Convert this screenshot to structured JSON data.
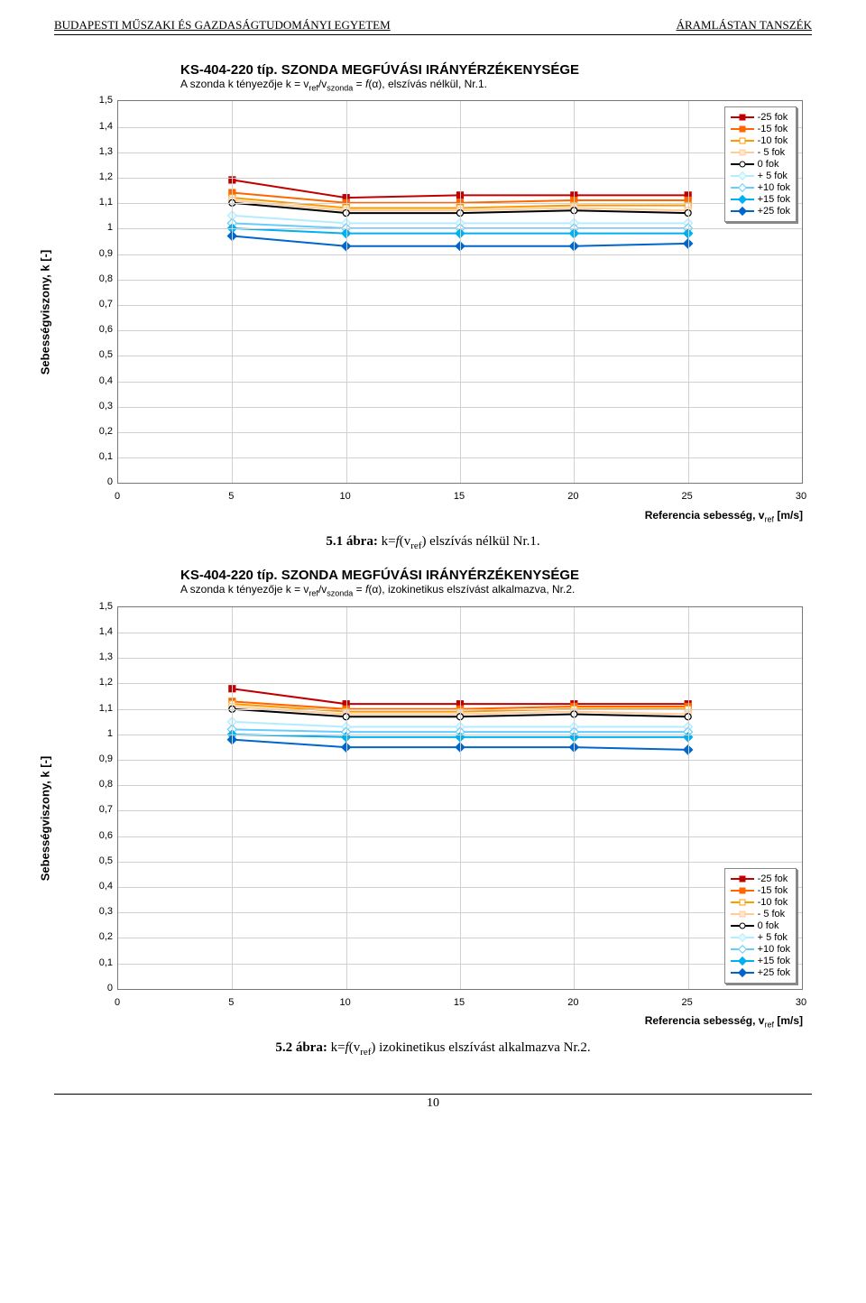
{
  "header": {
    "left": "BUDAPESTI MŰSZAKI ÉS GAZDASÁGTUDOMÁNYI EGYETEM",
    "right": "ÁRAMLÁSTAN TANSZÉK"
  },
  "page_number": "10",
  "common": {
    "x": [
      5,
      10,
      15,
      20,
      25
    ],
    "xlim": [
      0,
      30
    ],
    "xtick_step": 5,
    "ylim": [
      0,
      1.5
    ],
    "ytick_step": 0.1,
    "ytick_labels": [
      "0",
      "0,1",
      "0,2",
      "0,3",
      "0,4",
      "0,5",
      "0,6",
      "0,7",
      "0,8",
      "0,9",
      "1",
      "1,1",
      "1,2",
      "1,3",
      "1,4",
      "1,5"
    ],
    "xtick_labels": [
      "0",
      "5",
      "10",
      "15",
      "20",
      "25",
      "30"
    ],
    "ylabel": "Sebességviszony, k [-]",
    "xlabel_html": "Referencia sebesség, v<sub>ref</sub> [m/s]",
    "grid_color": "#d0d0d0",
    "background_color": "#ffffff",
    "axis_color": "#777777",
    "legend_fontsize": 11,
    "label_fontsize": 13,
    "tick_fontsize": 11,
    "line_width": 2,
    "marker_size": 7,
    "series_style": [
      {
        "key": "m25",
        "label": "-25 fok",
        "color": "#c00000",
        "marker": "sq",
        "mfill": "#c00000"
      },
      {
        "key": "m15",
        "label": "-15 fok",
        "color": "#ff6600",
        "marker": "sq",
        "mfill": "#ff6600"
      },
      {
        "key": "m10",
        "label": "-10 fok",
        "color": "#ff9900",
        "marker": "sq",
        "mfill": "#fff",
        "mborder": "#ff9900"
      },
      {
        "key": "m5",
        "label": "- 5 fok",
        "color": "#ffcc99",
        "marker": "sq",
        "mfill": "#ffe6cc",
        "mborder": "#ffcc99"
      },
      {
        "key": "z0",
        "label": "  0 fok",
        "color": "#000000",
        "marker": "ci",
        "mfill": "#ffffff",
        "mborder": "#000000"
      },
      {
        "key": "p5",
        "label": "+ 5 fok",
        "color": "#b3ecff",
        "marker": "di",
        "mfill": "#e6f9ff",
        "mborder": "#b3ecff"
      },
      {
        "key": "p10",
        "label": "+10 fok",
        "color": "#66ccff",
        "marker": "di",
        "mfill": "#fff",
        "mborder": "#66ccff"
      },
      {
        "key": "p15",
        "label": "+15 fok",
        "color": "#00b0f0",
        "marker": "di",
        "mfill": "#00b0f0"
      },
      {
        "key": "p25",
        "label": "+25 fok",
        "color": "#0066cc",
        "marker": "di",
        "mfill": "#0066cc"
      }
    ]
  },
  "chart1": {
    "title": "KS-404-220 típ. SZONDA MEGFÚVÁSI IRÁNYÉRZÉKENYSÉGE",
    "sub_html": "A szonda k tényezője k = v<sub>ref</sub>/v<sub>szonda</sub> = <i>f</i>(α), elszívás nélkül, Nr.1.",
    "legend_pos": "top-right",
    "caption_html": "<b>5.1 ábra:</b> k=<i>f</i>(v<sub>ref</sub>) elszívás nélkül Nr.1.",
    "data": {
      "m25": [
        1.19,
        1.12,
        1.13,
        1.13,
        1.13
      ],
      "m15": [
        1.14,
        1.1,
        1.1,
        1.11,
        1.11
      ],
      "m10": [
        1.12,
        1.08,
        1.08,
        1.09,
        1.09
      ],
      "m5": [
        1.11,
        1.07,
        1.07,
        1.08,
        1.07
      ],
      "z0": [
        1.1,
        1.06,
        1.06,
        1.07,
        1.06
      ],
      "p5": [
        1.05,
        1.02,
        1.02,
        1.02,
        1.02
      ],
      "p10": [
        1.02,
        1.0,
        1.0,
        1.0,
        1.0
      ],
      "p15": [
        1.0,
        0.98,
        0.98,
        0.98,
        0.98
      ],
      "p25": [
        0.97,
        0.93,
        0.93,
        0.93,
        0.94
      ]
    }
  },
  "chart2": {
    "title": "KS-404-220 típ. SZONDA MEGFÚVÁSI IRÁNYÉRZÉKENYSÉGE",
    "sub_html": "A szonda k tényezője k = v<sub>ref</sub>/v<sub>szonda</sub> = <i>f</i>(α), izokinetikus elszívást alkalmazva, Nr.2.",
    "legend_pos": "bottom-right",
    "caption_html": "<b>5.2 ábra:</b> k=<i>f</i>(v<sub>ref</sub>) izokinetikus elszívást alkalmazva Nr.2.",
    "data": {
      "m25": [
        1.18,
        1.12,
        1.12,
        1.12,
        1.12
      ],
      "m15": [
        1.13,
        1.1,
        1.1,
        1.11,
        1.11
      ],
      "m10": [
        1.12,
        1.09,
        1.09,
        1.1,
        1.1
      ],
      "m5": [
        1.11,
        1.08,
        1.08,
        1.09,
        1.08
      ],
      "z0": [
        1.1,
        1.07,
        1.07,
        1.08,
        1.07
      ],
      "p5": [
        1.05,
        1.03,
        1.03,
        1.03,
        1.03
      ],
      "p10": [
        1.02,
        1.01,
        1.01,
        1.01,
        1.01
      ],
      "p15": [
        1.0,
        0.99,
        0.99,
        0.99,
        0.99
      ],
      "p25": [
        0.98,
        0.95,
        0.95,
        0.95,
        0.94
      ]
    }
  }
}
